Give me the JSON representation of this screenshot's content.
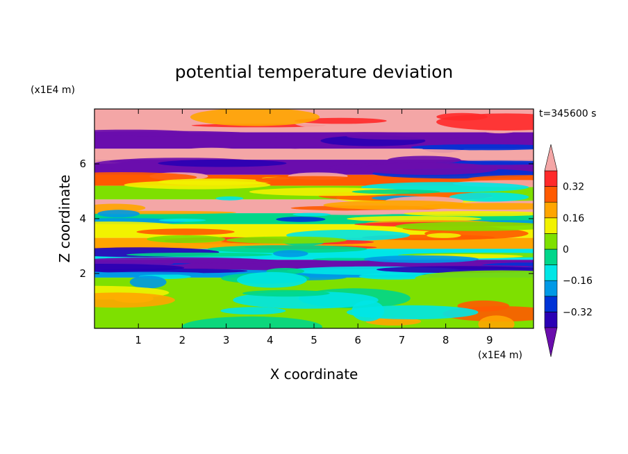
{
  "chart_data": {
    "type": "heatmap",
    "title": "potential temperature deviation",
    "xlabel": "X coordinate",
    "ylabel": "Z coordinate",
    "x_unit_label": "(x1E4 m)",
    "y_unit_label": "(x1E4 m)",
    "time_label": "t=345600 s",
    "xlim": [
      0,
      10
    ],
    "ylim": [
      0,
      8
    ],
    "x_ticks": [
      1,
      2,
      3,
      4,
      5,
      6,
      7,
      8,
      9
    ],
    "y_ticks": [
      2,
      4,
      6
    ],
    "x_tick_labels": [
      "1",
      "2",
      "3",
      "4",
      "5",
      "6",
      "7",
      "8",
      "9"
    ],
    "y_tick_labels": [
      "2",
      "4",
      "6"
    ],
    "colorbar": {
      "levels": [
        -0.4,
        -0.32,
        -0.24,
        -0.16,
        -0.08,
        0,
        0.08,
        0.16,
        0.24,
        0.32,
        0.4
      ],
      "tick_values": [
        0.32,
        0.16,
        0,
        -0.16,
        -0.32
      ],
      "tick_labels": [
        "0.32",
        "0.16",
        "0",
        "−0.16",
        "−0.32"
      ],
      "colors": [
        "#6a0dad",
        "#2a00b4",
        "#0033d6",
        "#0099e6",
        "#00e6e6",
        "#00d68a",
        "#7ee000",
        "#f2f200",
        "#ffa500",
        "#ff5a00",
        "#ff2a2a",
        "#f4a6a6"
      ],
      "extend": "both"
    },
    "bands": [
      {
        "z": [
          7.15,
          8.0
        ],
        "value": 0.45
      },
      {
        "z": [
          6.55,
          7.15
        ],
        "value": -0.45
      },
      {
        "z": [
          6.15,
          6.55
        ],
        "value": 0.45
      },
      {
        "z": [
          5.6,
          6.15
        ],
        "value": -0.45
      },
      {
        "z": [
          5.2,
          5.6
        ],
        "value": 0.3
      },
      {
        "z": [
          4.7,
          5.2
        ],
        "value": 0.05
      },
      {
        "z": [
          4.2,
          4.7
        ],
        "value": 0.4
      },
      {
        "z": [
          3.8,
          4.2
        ],
        "value": -0.05
      },
      {
        "z": [
          3.3,
          3.8
        ],
        "value": 0.12
      },
      {
        "z": [
          2.9,
          3.3
        ],
        "value": 0.2
      },
      {
        "z": [
          2.5,
          2.9
        ],
        "value": -0.1
      },
      {
        "z": [
          2.15,
          2.5
        ],
        "value": -0.45
      },
      {
        "z": [
          1.85,
          2.15
        ],
        "value": -0.2
      },
      {
        "z": [
          0.0,
          1.85
        ],
        "value": 0.04
      }
    ]
  }
}
